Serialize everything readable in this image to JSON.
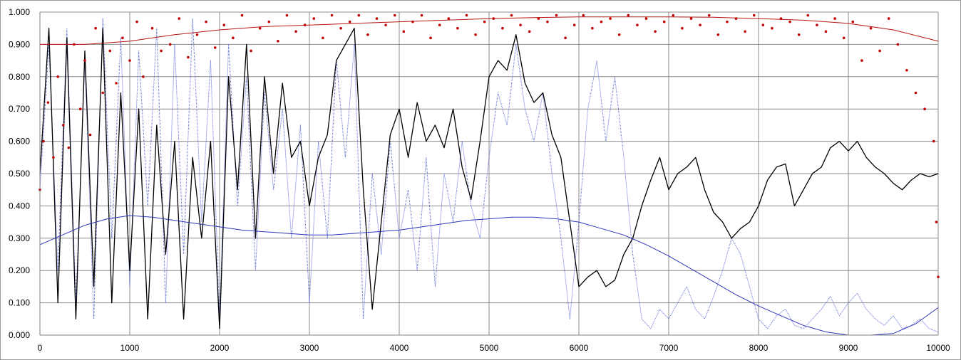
{
  "chart_data": {
    "type": "line",
    "title": "",
    "xlabel": "",
    "ylabel": "",
    "xlim": [
      0,
      10000
    ],
    "ylim": [
      0,
      1
    ],
    "x_ticks": [
      0,
      1000,
      2000,
      3000,
      4000,
      5000,
      6000,
      7000,
      8000,
      9000,
      10000
    ],
    "x_tick_labels": [
      "0",
      "1000",
      "2000",
      "3000",
      "4000",
      "5000",
      "6000",
      "7000",
      "8000",
      "9000",
      "10000"
    ],
    "y_ticks": [
      0,
      0.1,
      0.2,
      0.3,
      0.4,
      0.5,
      0.6,
      0.7,
      0.8,
      0.9,
      1.0
    ],
    "y_tick_labels": [
      "0.000",
      "0.100",
      "0.200",
      "0.300",
      "0.400",
      "0.500",
      "0.600",
      "0.700",
      "0.800",
      "0.900",
      "1.000"
    ],
    "grid": true,
    "legend": "none",
    "series": [
      {
        "style": "dotted-line",
        "color": "#5a6ad8",
        "x": [
          0,
          100,
          200,
          300,
          400,
          500,
          600,
          700,
          800,
          900,
          1000,
          1100,
          1200,
          1300,
          1400,
          1500,
          1600,
          1700,
          1800,
          1900,
          2000,
          2100,
          2200,
          2300,
          2400,
          2500,
          2600,
          2700,
          2800,
          2900,
          3000,
          3100,
          3200,
          3300,
          3400,
          3500,
          3600,
          3700,
          3800,
          3900,
          4000,
          4100,
          4200,
          4300,
          4400,
          4500,
          4600,
          4700,
          4800,
          4900,
          5000,
          5100,
          5200,
          5300,
          5400,
          5500,
          5600,
          5700,
          5800,
          5900,
          6000,
          6100,
          6200,
          6300,
          6400,
          6500,
          6600,
          6700,
          6800,
          6900,
          7000,
          7100,
          7200,
          7300,
          7400,
          7500,
          7600,
          7700,
          7800,
          7900,
          8000,
          8100,
          8200,
          8300,
          8400,
          8500,
          8600,
          8700,
          8800,
          8900,
          9000,
          9100,
          9200,
          9300,
          9400,
          9500,
          9600,
          9700,
          9800,
          9900,
          10000
        ],
        "y": [
          0.45,
          0.9,
          0.2,
          0.95,
          0.1,
          0.85,
          0.05,
          0.98,
          0.3,
          0.92,
          0.15,
          0.88,
          0.4,
          0.95,
          0.1,
          0.9,
          0.25,
          0.98,
          0.35,
          0.85,
          0.05,
          0.9,
          0.4,
          0.8,
          0.2,
          0.75,
          0.45,
          0.7,
          0.3,
          0.65,
          0.1,
          0.6,
          0.3,
          0.85,
          0.55,
          0.9,
          0.05,
          0.5,
          0.25,
          0.6,
          0.3,
          0.45,
          0.2,
          0.55,
          0.15,
          0.5,
          0.35,
          0.6,
          0.4,
          0.3,
          0.55,
          0.75,
          0.65,
          0.9,
          0.7,
          0.6,
          0.75,
          0.5,
          0.3,
          0.05,
          0.35,
          0.7,
          0.85,
          0.6,
          0.8,
          0.55,
          0.25,
          0.05,
          0.02,
          0.08,
          0.05,
          0.1,
          0.15,
          0.08,
          0.05,
          0.12,
          0.2,
          0.3,
          0.25,
          0.15,
          0.05,
          0.02,
          0.06,
          0.08,
          0.03,
          0.02,
          0.05,
          0.08,
          0.12,
          0.06,
          0.1,
          0.13,
          0.08,
          0.05,
          0.03,
          0.06,
          0.02,
          0.03,
          0.05,
          0.02,
          0.01
        ]
      },
      {
        "style": "solid-line",
        "color": "#000000",
        "x": [
          0,
          100,
          200,
          300,
          400,
          500,
          600,
          700,
          800,
          900,
          1000,
          1100,
          1200,
          1300,
          1400,
          1500,
          1600,
          1700,
          1800,
          1900,
          2000,
          2100,
          2200,
          2300,
          2400,
          2500,
          2600,
          2700,
          2800,
          2900,
          3000,
          3100,
          3200,
          3300,
          3400,
          3500,
          3600,
          3700,
          3800,
          3900,
          4000,
          4100,
          4200,
          4300,
          4400,
          4500,
          4600,
          4700,
          4800,
          4900,
          5000,
          5100,
          5200,
          5300,
          5400,
          5500,
          5600,
          5700,
          5800,
          5900,
          6000,
          6100,
          6200,
          6300,
          6400,
          6500,
          6600,
          6700,
          6800,
          6900,
          7000,
          7100,
          7200,
          7300,
          7400,
          7500,
          7600,
          7700,
          7800,
          7900,
          8000,
          8100,
          8200,
          8300,
          8400,
          8500,
          8600,
          8700,
          8800,
          8900,
          9000,
          9100,
          9200,
          9300,
          9400,
          9500,
          9600,
          9700,
          9800,
          9900,
          10000
        ],
        "y": [
          0.5,
          0.95,
          0.1,
          0.92,
          0.05,
          0.88,
          0.15,
          0.95,
          0.1,
          0.75,
          0.2,
          0.7,
          0.05,
          0.65,
          0.25,
          0.6,
          0.05,
          0.55,
          0.3,
          0.6,
          0.02,
          0.8,
          0.45,
          0.9,
          0.3,
          0.8,
          0.5,
          0.78,
          0.55,
          0.6,
          0.4,
          0.55,
          0.62,
          0.85,
          0.9,
          0.95,
          0.45,
          0.08,
          0.35,
          0.62,
          0.7,
          0.55,
          0.72,
          0.6,
          0.65,
          0.58,
          0.7,
          0.52,
          0.42,
          0.6,
          0.8,
          0.85,
          0.82,
          0.93,
          0.78,
          0.72,
          0.75,
          0.62,
          0.55,
          0.35,
          0.15,
          0.18,
          0.2,
          0.15,
          0.17,
          0.25,
          0.3,
          0.4,
          0.48,
          0.55,
          0.45,
          0.5,
          0.52,
          0.55,
          0.45,
          0.38,
          0.35,
          0.3,
          0.33,
          0.35,
          0.4,
          0.48,
          0.52,
          0.53,
          0.4,
          0.45,
          0.5,
          0.52,
          0.58,
          0.6,
          0.57,
          0.6,
          0.55,
          0.52,
          0.5,
          0.47,
          0.45,
          0.48,
          0.5,
          0.49,
          0.5
        ]
      },
      {
        "style": "smooth-line",
        "color": "#2e35b8",
        "x": [
          0,
          250,
          500,
          750,
          1000,
          1250,
          1500,
          1750,
          2000,
          2250,
          2500,
          2750,
          3000,
          3250,
          3500,
          3750,
          4000,
          4250,
          4500,
          4750,
          5000,
          5250,
          5500,
          5750,
          6000,
          6250,
          6500,
          6750,
          7000,
          7250,
          7500,
          7750,
          8000,
          8250,
          8500,
          8750,
          9000,
          9250,
          9500,
          9750,
          10000
        ],
        "y": [
          0.28,
          0.31,
          0.34,
          0.36,
          0.37,
          0.365,
          0.355,
          0.345,
          0.335,
          0.325,
          0.32,
          0.315,
          0.31,
          0.31,
          0.315,
          0.32,
          0.325,
          0.335,
          0.345,
          0.355,
          0.36,
          0.365,
          0.365,
          0.36,
          0.35,
          0.33,
          0.31,
          0.28,
          0.245,
          0.205,
          0.165,
          0.125,
          0.09,
          0.06,
          0.03,
          0.01,
          0.0,
          0.0,
          0.005,
          0.035,
          0.085
        ]
      },
      {
        "style": "smooth-line",
        "color": "#b51313",
        "x": [
          0,
          500,
          1000,
          1500,
          2000,
          2500,
          3000,
          3500,
          4000,
          4500,
          5000,
          5500,
          6000,
          6500,
          7000,
          7500,
          8000,
          8500,
          9000,
          9500,
          10000
        ],
        "y": [
          0.9,
          0.9,
          0.91,
          0.93,
          0.945,
          0.955,
          0.96,
          0.965,
          0.97,
          0.975,
          0.98,
          0.983,
          0.985,
          0.985,
          0.985,
          0.984,
          0.98,
          0.975,
          0.965,
          0.945,
          0.91
        ]
      },
      {
        "style": "scatter",
        "color": "#c00000",
        "x": [
          0,
          40,
          90,
          150,
          200,
          260,
          320,
          380,
          450,
          500,
          560,
          620,
          700,
          780,
          850,
          920,
          1000,
          1080,
          1150,
          1250,
          1350,
          1450,
          1550,
          1650,
          1750,
          1850,
          1950,
          2050,
          2150,
          2250,
          2350,
          2450,
          2550,
          2650,
          2750,
          2850,
          2950,
          3050,
          3150,
          3250,
          3350,
          3450,
          3550,
          3650,
          3750,
          3850,
          3950,
          4050,
          4150,
          4250,
          4350,
          4450,
          4550,
          4650,
          4750,
          4850,
          4950,
          5050,
          5150,
          5250,
          5350,
          5450,
          5550,
          5650,
          5750,
          5850,
          5950,
          6050,
          6150,
          6250,
          6350,
          6450,
          6550,
          6650,
          6750,
          6850,
          6950,
          7050,
          7150,
          7250,
          7350,
          7450,
          7550,
          7650,
          7750,
          7850,
          7950,
          8050,
          8150,
          8250,
          8350,
          8450,
          8550,
          8650,
          8750,
          8850,
          8950,
          9050,
          9150,
          9250,
          9350,
          9450,
          9550,
          9650,
          9750,
          9850,
          9950,
          9980,
          10000
        ],
        "y": [
          0.45,
          0.6,
          0.72,
          0.55,
          0.8,
          0.65,
          0.58,
          0.9,
          0.7,
          0.85,
          0.62,
          0.95,
          0.75,
          0.88,
          0.78,
          0.92,
          0.85,
          0.97,
          0.8,
          0.95,
          0.88,
          0.9,
          0.98,
          0.86,
          0.93,
          0.97,
          0.89,
          0.96,
          0.92,
          0.99,
          0.88,
          0.95,
          0.97,
          0.91,
          0.99,
          0.94,
          0.96,
          0.98,
          0.92,
          0.99,
          0.95,
          0.97,
          0.99,
          0.93,
          0.98,
          0.96,
          0.99,
          0.94,
          0.97,
          0.99,
          0.92,
          0.96,
          0.98,
          0.95,
          0.99,
          0.93,
          0.97,
          0.98,
          0.95,
          0.99,
          0.96,
          0.94,
          0.98,
          0.97,
          0.99,
          0.92,
          0.96,
          0.99,
          0.95,
          0.97,
          0.98,
          0.93,
          0.99,
          0.96,
          0.98,
          0.94,
          0.97,
          0.99,
          0.95,
          0.98,
          0.96,
          0.99,
          0.93,
          0.97,
          0.98,
          0.94,
          0.99,
          0.96,
          0.95,
          0.98,
          0.97,
          0.93,
          0.99,
          0.96,
          0.94,
          0.98,
          0.92,
          0.97,
          0.85,
          0.95,
          0.88,
          0.98,
          0.9,
          0.82,
          0.75,
          0.7,
          0.6,
          0.35,
          0.18
        ]
      }
    ]
  }
}
